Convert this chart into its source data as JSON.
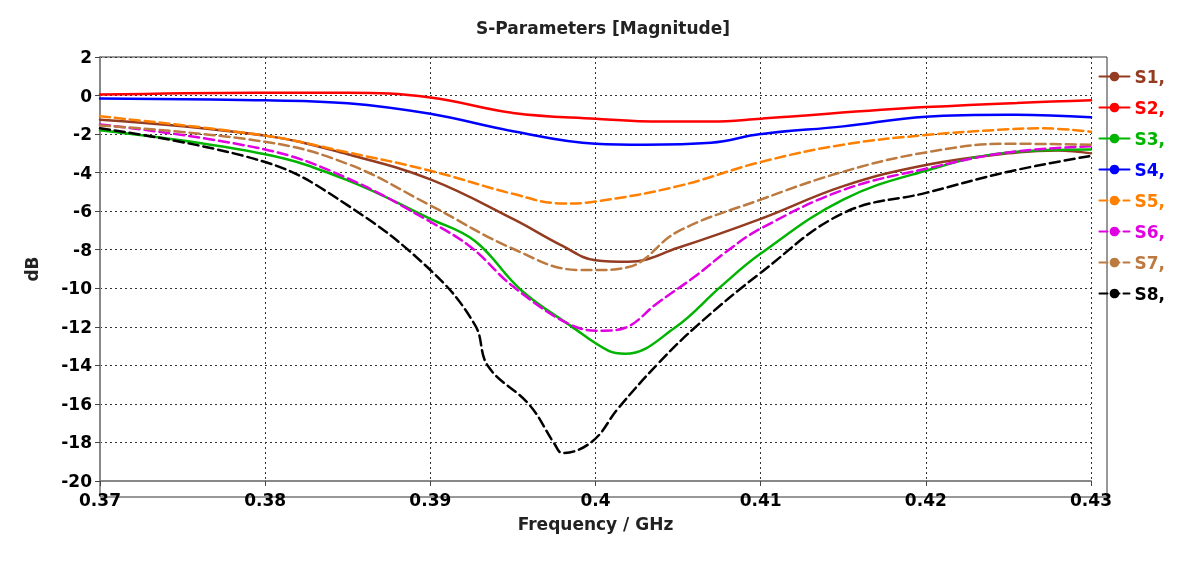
{
  "chart_data": {
    "type": "line",
    "title": "S-Parameters [Magnitude]",
    "xlabel": "Frequency / GHz",
    "ylabel": "dB",
    "xlim": [
      0.37,
      0.43
    ],
    "xticks": [
      0.37,
      0.38,
      0.39,
      0.4,
      0.41,
      0.42,
      0.43
    ],
    "ylim": [
      -20,
      2
    ],
    "yticks": [
      -20,
      -18,
      -16,
      -14,
      -12,
      -10,
      -8,
      -6,
      -4,
      -2,
      0,
      2
    ],
    "grid": true,
    "legend": "right",
    "marker": "none",
    "series": [
      {
        "name": "S1,",
        "color": "#943c22",
        "line_style": "solid",
        "x": [
          0.37,
          0.38,
          0.385,
          0.39,
          0.395,
          0.398,
          0.4,
          0.402,
          0.405,
          0.41,
          0.415,
          0.42,
          0.425,
          0.428,
          0.43
        ],
        "values": [
          -1.25,
          -2.08,
          -3.05,
          -4.35,
          -6.4,
          -7.8,
          -8.55,
          -8.63,
          -7.9,
          -6.4,
          -4.7,
          -3.6,
          -3.0,
          -2.85,
          -3.0
        ]
      },
      {
        "name": "S2,",
        "color": "#ff0000",
        "line_style": "solid",
        "x": [
          0.37,
          0.38,
          0.385,
          0.39,
          0.395,
          0.4,
          0.404,
          0.407,
          0.41,
          0.42,
          0.43
        ],
        "values": [
          0.05,
          0.15,
          0.15,
          -0.1,
          -0.9,
          -1.2,
          -1.35,
          -1.35,
          -1.2,
          -0.6,
          -0.25
        ]
      },
      {
        "name": "S3,",
        "color": "#00b400",
        "line_style": "solid",
        "x": [
          0.37,
          0.38,
          0.385,
          0.39,
          0.3927,
          0.3955,
          0.3985,
          0.4008,
          0.4018,
          0.4048,
          0.4076,
          0.41,
          0.415,
          0.42,
          0.425,
          0.43
        ],
        "values": [
          -1.8,
          -3.05,
          -4.4,
          -6.4,
          -7.55,
          -10.1,
          -11.95,
          -13.25,
          -13.4,
          -12.05,
          -9.9,
          -8.2,
          -5.4,
          -3.9,
          -2.95,
          -2.8
        ]
      },
      {
        "name": "S4,",
        "color": "#0000ff",
        "line_style": "solid",
        "x": [
          0.37,
          0.38,
          0.385,
          0.39,
          0.395,
          0.4,
          0.403,
          0.407,
          0.41,
          0.415,
          0.42,
          0.425,
          0.43
        ],
        "values": [
          -0.15,
          -0.25,
          -0.4,
          -0.95,
          -1.85,
          -2.5,
          -2.55,
          -2.45,
          -2.0,
          -1.6,
          -1.1,
          -1.0,
          -1.13
        ]
      },
      {
        "name": "S5,",
        "color": "#ff8000",
        "line_style": "dashed",
        "x": [
          0.37,
          0.38,
          0.385,
          0.39,
          0.395,
          0.398,
          0.4,
          0.405,
          0.41,
          0.415,
          0.42,
          0.425,
          0.427,
          0.43
        ],
        "values": [
          -1.08,
          -2.08,
          -2.95,
          -3.9,
          -5.1,
          -5.6,
          -5.5,
          -4.7,
          -3.45,
          -2.55,
          -2.05,
          -1.75,
          -1.7,
          -1.88
        ]
      },
      {
        "name": "S6,",
        "color": "#e100e1",
        "line_style": "dashed",
        "x": [
          0.37,
          0.38,
          0.385,
          0.39,
          0.3925,
          0.395,
          0.3985,
          0.4005,
          0.4018,
          0.4037,
          0.406,
          0.408,
          0.41,
          0.415,
          0.42,
          0.425,
          0.43
        ],
        "values": [
          -1.5,
          -2.8,
          -4.3,
          -6.55,
          -7.9,
          -9.9,
          -11.9,
          -12.2,
          -12.05,
          -10.8,
          -9.4,
          -8.05,
          -6.9,
          -4.9,
          -3.8,
          -2.95,
          -2.63
        ]
      },
      {
        "name": "S7,",
        "color": "#bc7a40",
        "line_style": "dashed",
        "x": [
          0.37,
          0.38,
          0.385,
          0.39,
          0.395,
          0.399,
          0.4,
          0.402,
          0.405,
          0.41,
          0.415,
          0.42,
          0.425,
          0.43
        ],
        "values": [
          -1.55,
          -2.4,
          -3.55,
          -5.7,
          -7.95,
          -9.05,
          -9.05,
          -8.9,
          -7.05,
          -5.4,
          -3.95,
          -2.95,
          -2.5,
          -2.55
        ]
      },
      {
        "name": "S8,",
        "color": "#000000",
        "line_style": "dashed",
        "x": [
          0.37,
          0.38,
          0.385,
          0.39,
          0.3927,
          0.3935,
          0.396,
          0.3975,
          0.398,
          0.3998,
          0.4014,
          0.4038,
          0.4062,
          0.41,
          0.415,
          0.42,
          0.425,
          0.43
        ],
        "values": [
          -1.7,
          -3.45,
          -5.7,
          -9.05,
          -11.9,
          -14.05,
          -16.05,
          -18.05,
          -18.55,
          -17.95,
          -16.2,
          -13.9,
          -11.9,
          -9.2,
          -6.1,
          -5.05,
          -3.95,
          -3.13
        ]
      }
    ]
  }
}
